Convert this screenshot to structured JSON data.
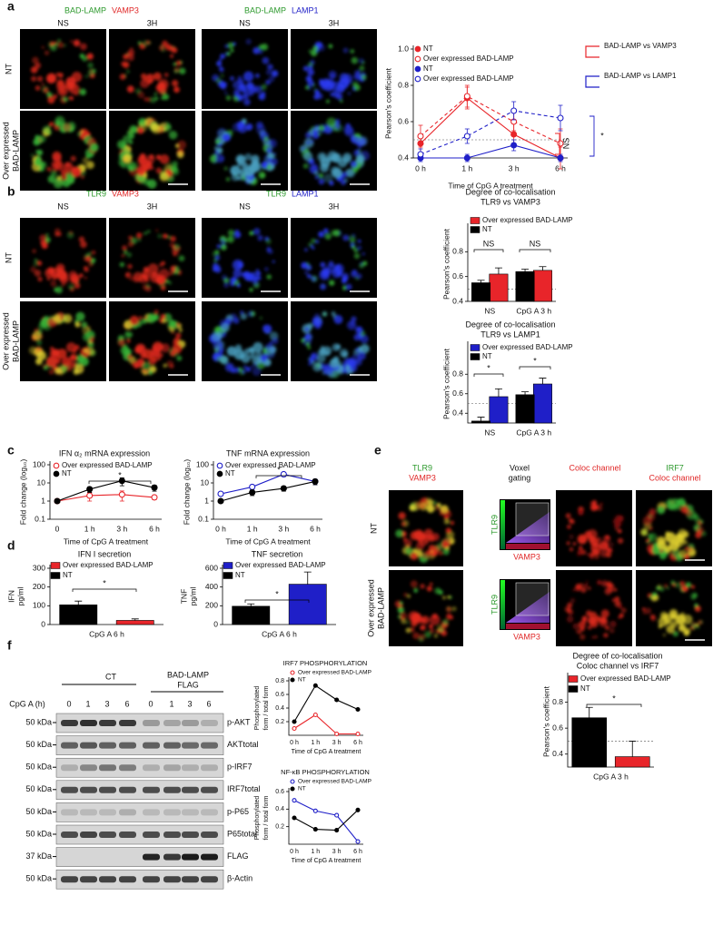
{
  "panel_labels": [
    "a",
    "b",
    "c",
    "d",
    "e",
    "f"
  ],
  "panel_a": {
    "stains": [
      [
        "BAD-LAMP",
        "VAMP3"
      ],
      [
        "BAD-LAMP",
        "LAMP1"
      ]
    ],
    "conditions": [
      "NS",
      "3H",
      "NS",
      "3H"
    ],
    "rows": [
      [
        "NT"
      ],
      [
        "Over expressed",
        "BAD-LAMP"
      ]
    ]
  },
  "panel_b": {
    "stains": [
      [
        "TLR9",
        "VAMP3"
      ],
      [
        "TLR9",
        "LAMP1"
      ]
    ],
    "conditions": [
      "NS",
      "3H",
      "NS",
      "3H"
    ],
    "rows": [
      [
        "NT"
      ],
      [
        "Over expressed",
        "BAD-LAMP"
      ]
    ]
  },
  "panel_e": {
    "headers": [
      [
        "TLR9",
        "VAMP3"
      ],
      [
        "Voxel",
        "gating"
      ],
      [
        "Coloc channel"
      ],
      [
        "IRF7",
        "Coloc channel"
      ]
    ],
    "rows": [
      [
        "NT"
      ],
      [
        "Over expressed",
        "BAD-LAMP"
      ]
    ],
    "voxel_axes": [
      "TLR9",
      "VAMP3"
    ]
  },
  "panel_f": {
    "groups": [
      [
        "CT"
      ],
      [
        "BAD-LAMP",
        "FLAG"
      ]
    ],
    "time_label": "CpG A (h)",
    "lanes": [
      "0",
      "1",
      "3",
      "6",
      "0",
      "1",
      "3",
      "6"
    ],
    "markers": [
      "50 kDa",
      "50 kDa",
      "50 kDa",
      "50 kDa",
      "50 kDa",
      "50 kDa",
      "37 kDa",
      "50 kDa"
    ],
    "bands": [
      "p-AKT",
      "AKTtotal",
      "p-IRF7",
      "IRF7total",
      "p-P65",
      "P65total",
      "FLAG",
      "β-Actin"
    ]
  },
  "chart_data": [
    {
      "type": "line",
      "ylabel": [
        "Pearson's coefficient"
      ],
      "xlabel": "Time of CpG A treatment",
      "categories": [
        "0 h",
        "1 h",
        "3 h",
        "6 h"
      ],
      "ylim": [
        0.4,
        1.0
      ],
      "yticks": [
        0.4,
        0.6,
        0.8,
        {
          "value": 1.0,
          "label": "1.0"
        }
      ],
      "reference_line": 0.5,
      "series": [
        {
          "name": "NT",
          "color": "#e8252a",
          "marker": "filled",
          "dashed": false,
          "values": [
            0.48,
            0.73,
            0.53,
            0.4
          ],
          "errors": [
            0.05,
            0.06,
            0.07,
            0.06
          ]
        },
        {
          "name": "Over expressed BAD-LAMP",
          "color": "#e8252a",
          "marker": "open",
          "dashed": true,
          "values": [
            0.52,
            0.74,
            0.6,
            0.48
          ],
          "errors": [
            0.06,
            0.06,
            0.05,
            0.08
          ]
        },
        {
          "name": "NT",
          "color": "#1f1fc8",
          "marker": "filled",
          "dashed": false,
          "values": [
            0.4,
            0.4,
            0.47,
            0.4
          ],
          "errors": [
            0.02,
            0.02,
            0.03,
            0.02
          ]
        },
        {
          "name": "Over expressed BAD-LAMP",
          "color": "#1f1fc8",
          "marker": "open",
          "dashed": true,
          "values": [
            0.42,
            0.52,
            0.66,
            0.62
          ],
          "errors": [
            0.03,
            0.04,
            0.05,
            0.07
          ]
        }
      ],
      "groups": [
        {
          "name": "BAD-LAMP vs VAMP3",
          "color": "#e8252a"
        },
        {
          "name": "BAD-LAMP vs LAMP1",
          "color": "#1f1fc8"
        }
      ],
      "annotations": [
        "NS",
        "*"
      ]
    },
    {
      "type": "bar",
      "title": [
        "Degree of co-localisation",
        "TLR9 vs VAMP3"
      ],
      "ylabel": [
        "Pearson's coefficient"
      ],
      "categories": [
        "NS",
        "CpG A 3 h"
      ],
      "ylim": [
        0.4,
        1.0
      ],
      "yticks": [
        0.4,
        0.6,
        0.8
      ],
      "reference_line": 0.5,
      "series": [
        {
          "name": "Over expressed BAD-LAMP",
          "color": "#e8252a",
          "values": [
            0.62,
            0.65
          ],
          "errors": [
            0.05,
            0.03
          ]
        },
        {
          "name": "NT",
          "color": "#000000",
          "values": [
            0.55,
            0.64
          ],
          "errors": [
            0.02,
            0.02
          ]
        }
      ],
      "annotations": [
        "NS",
        "NS"
      ]
    },
    {
      "type": "bar",
      "title": [
        "Degree of co-localisation",
        "TLR9 vs LAMP1"
      ],
      "ylabel": [
        "Pearson's coefficient"
      ],
      "categories": [
        "NS",
        "CpG A 3 h"
      ],
      "ylim": [
        0.3,
        1.1
      ],
      "yticks": [
        0.4,
        0.6,
        0.8
      ],
      "reference_line": 0.5,
      "series": [
        {
          "name": "Over expressed BAD-LAMP",
          "color": "#1f1fc8",
          "values": [
            0.57,
            0.7
          ],
          "errors": [
            0.08,
            0.06
          ]
        },
        {
          "name": "NT",
          "color": "#000000",
          "values": [
            0.32,
            0.59
          ],
          "errors": [
            0.04,
            0.03
          ]
        }
      ],
      "annotations": [
        "*",
        "*"
      ]
    },
    {
      "type": "line",
      "title": [
        "IFN α₂ mRNA expression"
      ],
      "ylabel": [
        "Fold change (log₁₀)"
      ],
      "xlabel": "Time of CpG A treatment",
      "categories": [
        "0",
        "1 h",
        "3 h",
        "6 h"
      ],
      "yscale": "log",
      "ylim": [
        0.1,
        100
      ],
      "yticks": [
        0.1,
        1,
        10,
        100
      ],
      "series": [
        {
          "name": "Over expressed BAD-LAMP",
          "color": "#e8252a",
          "marker": "open",
          "dashed": false,
          "values": [
            1.0,
            2.0,
            2.3,
            1.6
          ],
          "errors": [
            0.2,
            1.0,
            1.3,
            0.4
          ]
        },
        {
          "name": "NT",
          "color": "#000000",
          "marker": "filled",
          "dashed": false,
          "values": [
            1.0,
            4.5,
            13,
            5.5
          ],
          "errors": [
            0.1,
            1.5,
            6,
            2
          ]
        }
      ],
      "annotations": [
        "*"
      ]
    },
    {
      "type": "line",
      "title": [
        "TNF mRNA expression"
      ],
      "ylabel": [
        "Fold change (log₁₀)"
      ],
      "xlabel": "Time of CpG A treatment",
      "categories": [
        "0 h",
        "1 h",
        "3 h",
        "6 h"
      ],
      "yscale": "log",
      "ylim": [
        0.1,
        100
      ],
      "yticks": [
        0.1,
        1,
        10,
        100
      ],
      "series": [
        {
          "name": "Over expressed BAD-LAMP",
          "color": "#1f1fc8",
          "marker": "open",
          "dashed": false,
          "values": [
            2.5,
            6,
            30,
            12
          ],
          "errors": [
            0.5,
            1,
            8,
            4
          ]
        },
        {
          "name": "NT",
          "color": "#000000",
          "marker": "filled",
          "dashed": false,
          "values": [
            1.0,
            3,
            5,
            12
          ],
          "errors": [
            0.1,
            1,
            1.5,
            4
          ]
        }
      ],
      "annotations": [
        "*"
      ]
    },
    {
      "type": "bar",
      "title": [
        "IFN I secretion"
      ],
      "ylabel": [
        "IFN",
        "pg/ml"
      ],
      "categories": [
        "CpG A 6 h"
      ],
      "ylim": [
        0,
        300
      ],
      "yticks": [
        0,
        100,
        200,
        300
      ],
      "series": [
        {
          "name": "Over expressed BAD-LAMP",
          "color": "#e8252a",
          "values": [
            22
          ],
          "errors": [
            8
          ]
        },
        {
          "name": "NT",
          "color": "#000000",
          "values": [
            105
          ],
          "errors": [
            20
          ]
        }
      ],
      "annotations": [
        "*"
      ]
    },
    {
      "type": "bar",
      "title": [
        "TNF secretion"
      ],
      "ylabel": [
        "TNF",
        "pg/ml"
      ],
      "categories": [
        "CpG A 6 h"
      ],
      "ylim": [
        0,
        600
      ],
      "yticks": [
        0,
        200,
        400,
        600
      ],
      "series": [
        {
          "name": "Over expressed BAD-LAMP",
          "color": "#1f1fc8",
          "values": [
            430
          ],
          "errors": [
            130
          ]
        },
        {
          "name": "NT",
          "color": "#000000",
          "values": [
            195
          ],
          "errors": [
            25
          ]
        }
      ],
      "annotations": [
        "*"
      ]
    },
    {
      "type": "bar",
      "title": [
        "Degree of co-localisation",
        "Coloc channel vs IRF7"
      ],
      "ylabel": [
        "Pearson's coefficient"
      ],
      "categories": [
        "CpG A 3 h"
      ],
      "ylim": [
        0.3,
        1.0
      ],
      "yticks": [
        0.4,
        0.6,
        0.8
      ],
      "reference_line": 0.5,
      "series": [
        {
          "name": "Over expressed BAD-LAMP",
          "color": "#e8252a",
          "values": [
            0.38
          ],
          "errors": [
            0.12
          ]
        },
        {
          "name": "NT",
          "color": "#000000",
          "values": [
            0.68
          ],
          "errors": [
            0.08
          ]
        }
      ],
      "annotations": [
        "*"
      ]
    },
    {
      "type": "line",
      "title": [
        "IRF7 PHOSPHORYLATION"
      ],
      "ylabel": [
        "Phosphorylated",
        "form / total form"
      ],
      "xlabel": "Time of CpG A treatment",
      "categories": [
        "0 h",
        "1 h",
        "3 h",
        "6 h"
      ],
      "ylim": [
        0,
        0.8
      ],
      "yticks": [
        0.2,
        0.4,
        0.6,
        0.8
      ],
      "series": [
        {
          "name": "Over expressed BAD-LAMP",
          "color": "#e8252a",
          "marker": "open",
          "dashed": false,
          "values": [
            0.1,
            0.3,
            0.02,
            0.02
          ]
        },
        {
          "name": "NT",
          "color": "#000000",
          "marker": "filled",
          "dashed": false,
          "values": [
            0.2,
            0.73,
            0.52,
            0.38
          ]
        }
      ]
    },
    {
      "type": "line",
      "title": [
        "NF-κB PHOSPHORYLATION"
      ],
      "ylabel": [
        "Phosphorylated",
        "form / total form"
      ],
      "xlabel": "Time of CpG A treatment",
      "categories": [
        "0 h",
        "1 h",
        "3 h",
        "6 h"
      ],
      "ylim": [
        0,
        0.6
      ],
      "yticks": [
        0.2,
        0.4,
        0.6
      ],
      "series": [
        {
          "name": "Over expressed BAD-LAMP",
          "color": "#1f1fc8",
          "marker": "open",
          "dashed": false,
          "values": [
            0.5,
            0.38,
            0.33,
            0.03
          ]
        },
        {
          "name": "NT",
          "color": "#000000",
          "marker": "filled",
          "dashed": false,
          "values": [
            0.3,
            0.17,
            0.16,
            0.39
          ]
        }
      ]
    }
  ]
}
